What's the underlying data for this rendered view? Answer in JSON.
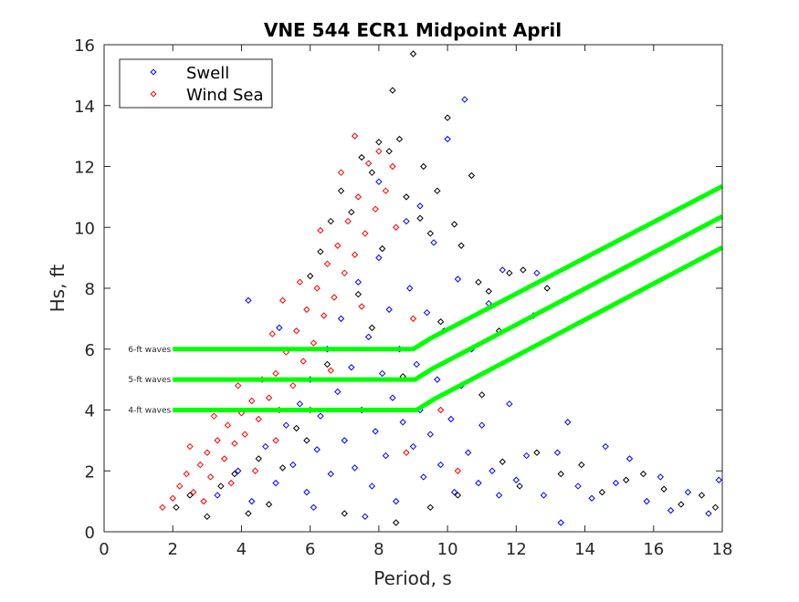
{
  "chart_data": {
    "type": "scatter",
    "title": "VNE 544 ECR1 Midpoint April",
    "xlabel": "Period, s",
    "ylabel": "Hs, ft",
    "xlim": [
      0,
      18
    ],
    "ylim": [
      0,
      16
    ],
    "xticks": [
      0,
      2,
      4,
      6,
      8,
      10,
      12,
      14,
      16,
      18
    ],
    "yticks": [
      0,
      2,
      4,
      6,
      8,
      10,
      12,
      14,
      16
    ],
    "grid": false,
    "legend": {
      "placement": "top-left",
      "entries": [
        {
          "label": "Swell",
          "color": "#0000ff"
        },
        {
          "label": "Wind Sea",
          "color": "#ff0000"
        }
      ]
    },
    "series": [
      {
        "name": "All data",
        "color": "#000000",
        "marker": "diamond",
        "in_legend": false,
        "points": [
          [
            2.1,
            0.8
          ],
          [
            2.5,
            1.2
          ],
          [
            3.0,
            0.5
          ],
          [
            3.4,
            1.5
          ],
          [
            4.2,
            0.6
          ],
          [
            4.8,
            0.9
          ],
          [
            5.2,
            2.1
          ],
          [
            5.6,
            3.4
          ],
          [
            6.0,
            8.4
          ],
          [
            6.3,
            9.2
          ],
          [
            6.6,
            10.2
          ],
          [
            6.9,
            11.2
          ],
          [
            7.2,
            10.5
          ],
          [
            7.5,
            12.3
          ],
          [
            7.8,
            11.8
          ],
          [
            8.0,
            12.8
          ],
          [
            8.3,
            12.5
          ],
          [
            8.4,
            14.5
          ],
          [
            8.6,
            12.9
          ],
          [
            8.8,
            11.0
          ],
          [
            9.0,
            15.7
          ],
          [
            9.2,
            10.3
          ],
          [
            9.3,
            12.0
          ],
          [
            9.5,
            9.8
          ],
          [
            9.7,
            11.2
          ],
          [
            10.0,
            13.6
          ],
          [
            10.2,
            10.1
          ],
          [
            10.4,
            9.4
          ],
          [
            10.7,
            11.7
          ],
          [
            10.9,
            8.2
          ],
          [
            11.2,
            7.9
          ],
          [
            11.5,
            6.6
          ],
          [
            11.8,
            8.5
          ],
          [
            12.2,
            8.6
          ],
          [
            12.5,
            7.1
          ],
          [
            12.9,
            8.0
          ],
          [
            11.0,
            4.5
          ],
          [
            11.6,
            2.3
          ],
          [
            12.1,
            1.5
          ],
          [
            12.6,
            2.6
          ],
          [
            13.3,
            1.9
          ],
          [
            13.9,
            2.2
          ],
          [
            14.5,
            1.3
          ],
          [
            15.2,
            1.7
          ],
          [
            15.7,
            1.9
          ],
          [
            16.3,
            1.4
          ],
          [
            16.8,
            0.9
          ],
          [
            17.4,
            1.2
          ],
          [
            17.8,
            0.8
          ],
          [
            7.0,
            0.6
          ],
          [
            8.5,
            0.3
          ],
          [
            9.5,
            0.8
          ],
          [
            10.3,
            1.2
          ],
          [
            6.5,
            5.5
          ],
          [
            7.8,
            6.7
          ],
          [
            8.7,
            5.1
          ],
          [
            5.9,
            3.0
          ],
          [
            9.8,
            6.9
          ],
          [
            4.5,
            2.4
          ],
          [
            3.8,
            1.9
          ],
          [
            7.4,
            7.8
          ],
          [
            8.1,
            9.3
          ]
        ]
      },
      {
        "name": "Swell",
        "color": "#0000ff",
        "marker": "diamond",
        "in_legend": true,
        "points": [
          [
            3.3,
            1.2
          ],
          [
            3.9,
            2.0
          ],
          [
            4.3,
            1.0
          ],
          [
            4.7,
            2.8
          ],
          [
            5.0,
            1.6
          ],
          [
            5.3,
            3.5
          ],
          [
            5.5,
            2.2
          ],
          [
            5.7,
            4.2
          ],
          [
            5.9,
            1.3
          ],
          [
            6.0,
            5.0
          ],
          [
            6.2,
            2.7
          ],
          [
            6.3,
            3.8
          ],
          [
            6.5,
            6.0
          ],
          [
            6.6,
            1.9
          ],
          [
            6.8,
            4.6
          ],
          [
            6.9,
            7.0
          ],
          [
            7.0,
            3.0
          ],
          [
            7.2,
            5.4
          ],
          [
            7.3,
            2.1
          ],
          [
            7.4,
            8.2
          ],
          [
            7.5,
            4.0
          ],
          [
            7.7,
            6.4
          ],
          [
            7.8,
            1.5
          ],
          [
            7.9,
            3.3
          ],
          [
            8.0,
            9.0
          ],
          [
            8.1,
            5.2
          ],
          [
            8.2,
            2.5
          ],
          [
            8.3,
            7.3
          ],
          [
            8.4,
            4.4
          ],
          [
            8.5,
            1.0
          ],
          [
            8.6,
            6.0
          ],
          [
            8.7,
            3.6
          ],
          [
            8.8,
            10.2
          ],
          [
            8.9,
            8.0
          ],
          [
            9.0,
            2.8
          ],
          [
            9.1,
            5.5
          ],
          [
            9.2,
            4.0
          ],
          [
            9.3,
            1.8
          ],
          [
            9.4,
            7.2
          ],
          [
            9.5,
            3.2
          ],
          [
            9.6,
            9.5
          ],
          [
            9.7,
            5.0
          ],
          [
            9.8,
            2.2
          ],
          [
            9.9,
            6.6
          ],
          [
            10.0,
            12.9
          ],
          [
            10.1,
            3.7
          ],
          [
            10.2,
            1.3
          ],
          [
            10.3,
            8.3
          ],
          [
            10.4,
            4.8
          ],
          [
            10.5,
            14.2
          ],
          [
            10.6,
            2.6
          ],
          [
            10.7,
            6.0
          ],
          [
            10.9,
            1.6
          ],
          [
            11.0,
            3.5
          ],
          [
            11.2,
            7.5
          ],
          [
            11.3,
            2.0
          ],
          [
            11.5,
            1.2
          ],
          [
            11.6,
            8.6
          ],
          [
            11.8,
            4.2
          ],
          [
            12.0,
            1.7
          ],
          [
            12.3,
            2.5
          ],
          [
            12.6,
            8.5
          ],
          [
            12.8,
            1.2
          ],
          [
            13.2,
            2.6
          ],
          [
            13.3,
            0.3
          ],
          [
            13.5,
            3.6
          ],
          [
            13.8,
            1.5
          ],
          [
            14.2,
            1.1
          ],
          [
            14.6,
            2.8
          ],
          [
            14.9,
            1.6
          ],
          [
            15.3,
            2.4
          ],
          [
            15.8,
            1.0
          ],
          [
            16.2,
            1.8
          ],
          [
            16.5,
            0.7
          ],
          [
            17.0,
            1.3
          ],
          [
            17.6,
            0.6
          ],
          [
            17.9,
            1.7
          ],
          [
            4.2,
            7.6
          ],
          [
            5.1,
            6.7
          ],
          [
            6.1,
            0.8
          ],
          [
            7.6,
            0.5
          ],
          [
            8.0,
            11.5
          ],
          [
            9.2,
            10.7
          ]
        ]
      },
      {
        "name": "Wind Sea",
        "color": "#ff0000",
        "marker": "diamond",
        "in_legend": true,
        "points": [
          [
            1.7,
            0.8
          ],
          [
            2.0,
            1.1
          ],
          [
            2.2,
            1.5
          ],
          [
            2.4,
            1.9
          ],
          [
            2.6,
            1.3
          ],
          [
            2.8,
            2.2
          ],
          [
            3.0,
            2.6
          ],
          [
            3.1,
            1.8
          ],
          [
            3.3,
            3.0
          ],
          [
            3.5,
            2.4
          ],
          [
            3.6,
            3.5
          ],
          [
            3.8,
            2.9
          ],
          [
            4.0,
            3.9
          ],
          [
            4.1,
            3.2
          ],
          [
            4.3,
            4.3
          ],
          [
            4.5,
            3.7
          ],
          [
            4.6,
            5.0
          ],
          [
            4.8,
            4.4
          ],
          [
            5.0,
            5.2
          ],
          [
            5.1,
            4.0
          ],
          [
            5.3,
            5.9
          ],
          [
            5.5,
            4.8
          ],
          [
            5.6,
            6.6
          ],
          [
            5.8,
            5.6
          ],
          [
            5.9,
            7.3
          ],
          [
            6.1,
            6.2
          ],
          [
            6.2,
            8.0
          ],
          [
            6.4,
            7.1
          ],
          [
            6.5,
            8.8
          ],
          [
            6.7,
            7.7
          ],
          [
            6.8,
            9.4
          ],
          [
            7.0,
            8.5
          ],
          [
            7.1,
            10.2
          ],
          [
            7.3,
            9.1
          ],
          [
            7.4,
            11.0
          ],
          [
            7.6,
            9.8
          ],
          [
            7.7,
            12.1
          ],
          [
            7.9,
            10.6
          ],
          [
            8.0,
            12.5
          ],
          [
            8.2,
            11.2
          ],
          [
            8.4,
            12.0
          ],
          [
            8.5,
            10.0
          ],
          [
            7.3,
            13.0
          ],
          [
            6.9,
            11.8
          ],
          [
            6.3,
            9.9
          ],
          [
            5.7,
            8.2
          ],
          [
            5.2,
            7.6
          ],
          [
            4.9,
            6.5
          ],
          [
            3.9,
            4.8
          ],
          [
            3.2,
            3.8
          ],
          [
            2.5,
            2.8
          ],
          [
            4.4,
            2.0
          ],
          [
            5.0,
            3.0
          ],
          [
            6.0,
            4.0
          ],
          [
            2.9,
            1.0
          ],
          [
            3.7,
            1.6
          ],
          [
            6.6,
            5.3
          ],
          [
            7.5,
            7.4
          ],
          [
            9.0,
            7.0
          ],
          [
            9.8,
            4.0
          ],
          [
            10.3,
            2.0
          ],
          [
            8.8,
            2.6
          ]
        ]
      }
    ],
    "threshold_lines": [
      {
        "label": "6-ft waves",
        "color": "#00ff00",
        "points": [
          [
            2,
            6
          ],
          [
            9.0,
            6
          ],
          [
            9.5,
            6.35
          ],
          [
            18,
            11.35
          ]
        ]
      },
      {
        "label": "5-ft waves",
        "color": "#00ff00",
        "points": [
          [
            2,
            5
          ],
          [
            9.05,
            5
          ],
          [
            9.55,
            5.35
          ],
          [
            18,
            10.36
          ]
        ]
      },
      {
        "label": "4-ft waves",
        "color": "#00ff00",
        "points": [
          [
            2,
            4
          ],
          [
            9.1,
            4
          ],
          [
            9.6,
            4.35
          ],
          [
            18,
            9.34
          ]
        ]
      }
    ]
  }
}
